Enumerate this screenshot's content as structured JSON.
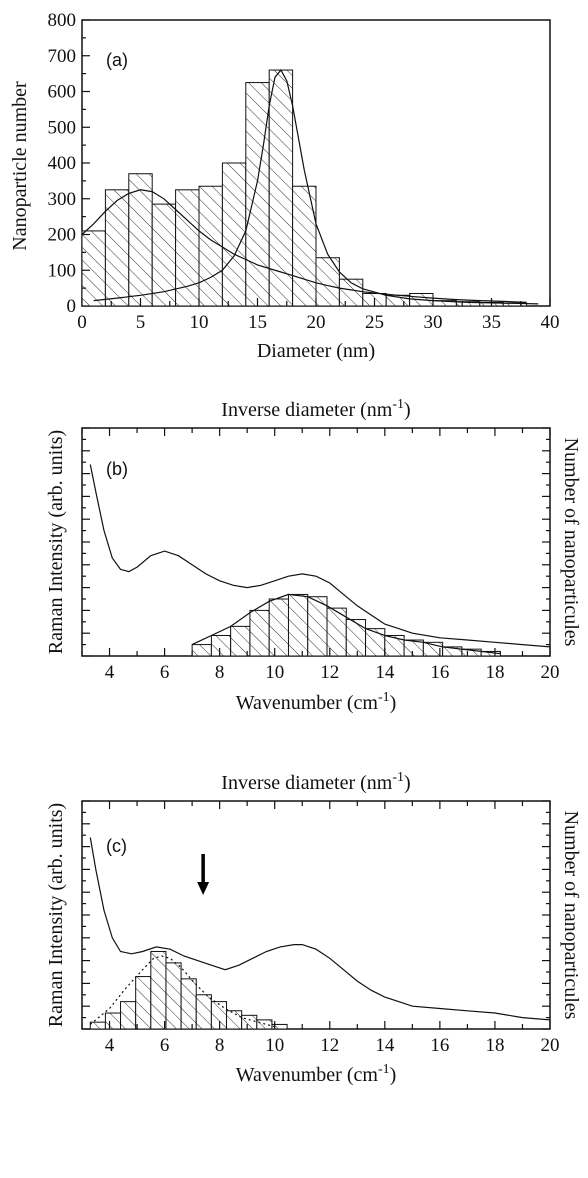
{
  "chart_data": [
    {
      "id": "a",
      "type": "bar",
      "panel_label": "(a)",
      "xlabel": "Diameter (nm)",
      "ylabel": "Nanoparticle number",
      "xlim": [
        0,
        40
      ],
      "ylim": [
        0,
        800
      ],
      "xticks": [
        0,
        5,
        10,
        15,
        20,
        25,
        30,
        35,
        40
      ],
      "yticks": [
        0,
        100,
        200,
        300,
        400,
        500,
        600,
        700,
        800
      ],
      "bin_width": 2,
      "bar_fill": "hatched",
      "bars": {
        "x_start": [
          0,
          2,
          4,
          6,
          8,
          10,
          12,
          14,
          16,
          18,
          20,
          22,
          24,
          26,
          28,
          30,
          32,
          34,
          36
        ],
        "values": [
          210,
          325,
          370,
          285,
          325,
          335,
          400,
          625,
          660,
          335,
          135,
          75,
          35,
          30,
          35,
          15,
          12,
          10,
          8
        ]
      },
      "curves": [
        {
          "x": [
            0,
            1,
            2,
            3,
            4,
            5,
            6,
            7,
            8,
            9,
            10,
            11,
            12,
            13,
            14,
            15,
            16,
            17,
            18,
            19,
            20,
            21,
            22,
            23,
            24,
            25,
            26,
            28,
            30,
            32,
            34,
            36,
            38
          ],
          "y": [
            200,
            230,
            265,
            295,
            315,
            325,
            320,
            300,
            270,
            240,
            210,
            185,
            165,
            145,
            130,
            115,
            105,
            95,
            85,
            75,
            65,
            57,
            50,
            45,
            40,
            36,
            33,
            27,
            22,
            18,
            15,
            13,
            10
          ]
        },
        {
          "x": [
            1,
            3,
            5,
            7,
            9,
            10,
            11,
            12,
            13,
            14,
            15,
            15.5,
            16,
            16.5,
            17,
            17.5,
            18,
            19,
            20,
            21,
            22,
            23,
            24,
            26,
            28,
            30,
            33,
            36,
            39
          ],
          "y": [
            15,
            22,
            30,
            40,
            55,
            65,
            80,
            100,
            140,
            210,
            350,
            450,
            560,
            640,
            660,
            630,
            560,
            380,
            230,
            145,
            95,
            65,
            48,
            30,
            20,
            15,
            10,
            8,
            6
          ]
        }
      ]
    },
    {
      "id": "b",
      "type": "bar",
      "panel_label": "(b)",
      "title": "Inverse diameter (nm",
      "title_sup": "-1",
      "title_end": ")",
      "xlabel": "Wavenumber (cm",
      "xlabel_sup": "-1",
      "xlabel_end": ")",
      "ylabel": "Raman Intensity (arb. units)",
      "y2label": "Number of nanoparticules",
      "xlim": [
        3,
        20
      ],
      "ylim": [
        0,
        100
      ],
      "xticks": [
        4,
        6,
        8,
        10,
        12,
        14,
        16,
        18,
        20
      ],
      "bin_width": 0.7,
      "bar_fill": "hatched",
      "bars": {
        "x_start": [
          7.0,
          7.7,
          8.4,
          9.1,
          9.8,
          10.5,
          11.2,
          11.9,
          12.6,
          13.3,
          14.0,
          14.7,
          15.4,
          16.1,
          16.8,
          17.5
        ],
        "values": [
          5,
          9,
          13,
          20,
          25,
          27,
          26,
          21,
          16,
          12,
          9,
          7,
          6,
          4,
          3,
          2
        ]
      },
      "curves": [
        {
          "x": [
            3.3,
            3.5,
            3.8,
            4.1,
            4.4,
            4.7,
            5.0,
            5.5,
            6.0,
            6.5,
            7.0,
            7.5,
            8.0,
            8.5,
            9.0,
            9.5,
            10.0,
            10.5,
            11.0,
            11.5,
            12.0,
            12.5,
            13.0,
            13.5,
            14.0,
            14.5,
            15.0,
            16.0,
            17.0,
            18.0,
            19.0,
            20.0
          ],
          "y": [
            84,
            72,
            55,
            43,
            38,
            37,
            39,
            44,
            46,
            44,
            40,
            36,
            33,
            31,
            30,
            31,
            33,
            35,
            36,
            35,
            32,
            27,
            22,
            18,
            14,
            12,
            10,
            8,
            7,
            6,
            5,
            4
          ]
        },
        {
          "x": [
            7.0,
            7.7,
            8.4,
            9.1,
            9.8,
            10.5,
            11.2,
            11.9,
            12.6,
            13.3,
            14.0,
            14.7,
            15.4,
            16.1,
            16.8,
            17.5,
            18.2
          ],
          "y": [
            5,
            9,
            13,
            19,
            24,
            27,
            26,
            22,
            17,
            12,
            9,
            7,
            6,
            4,
            3,
            2,
            1
          ]
        }
      ]
    },
    {
      "id": "c",
      "type": "bar",
      "panel_label": "(c)",
      "title": "Inverse diameter (nm",
      "title_sup": "-1",
      "title_end": ")",
      "xlabel": "Wavenumber (cm",
      "xlabel_sup": "-1",
      "xlabel_end": ")",
      "ylabel": "Raman Intensity (arb. units)",
      "y2label": "Number of nanoparticules",
      "xlim": [
        3,
        20
      ],
      "ylim": [
        0,
        100
      ],
      "xticks": [
        4,
        6,
        8,
        10,
        12,
        14,
        16,
        18,
        20
      ],
      "bin_width": 0.55,
      "bar_fill": "hatched",
      "bars": {
        "x_start": [
          3.3,
          3.85,
          4.4,
          4.95,
          5.5,
          6.05,
          6.6,
          7.15,
          7.7,
          8.25,
          8.8,
          9.35,
          9.9
        ],
        "values": [
          3,
          7,
          12,
          23,
          34,
          29,
          22,
          15,
          12,
          8,
          6,
          4,
          2
        ]
      },
      "curves": [
        {
          "x": [
            3.3,
            3.5,
            3.8,
            4.1,
            4.4,
            4.8,
            5.2,
            5.7,
            6.2,
            6.7,
            7.2,
            7.7,
            8.2,
            8.7,
            9.2,
            9.7,
            10.2,
            10.7,
            11.0,
            11.5,
            12.0,
            12.5,
            13.0,
            13.5,
            14.0,
            14.5,
            15.0,
            16.0,
            17.0,
            18.0,
            19.0,
            20.0
          ],
          "y": [
            84,
            70,
            52,
            40,
            34,
            33,
            34,
            36,
            35,
            32,
            30,
            28,
            26,
            28,
            31,
            34,
            36,
            37,
            37,
            35,
            31,
            26,
            21,
            17,
            14,
            12,
            10,
            9,
            8,
            7,
            5,
            4
          ]
        },
        {
          "style": "dotted",
          "x": [
            3.3,
            4.0,
            4.6,
            5.2,
            5.6,
            5.9,
            6.2,
            6.6,
            7.1,
            7.6,
            8.2,
            8.8,
            9.4,
            10.0
          ],
          "y": [
            2,
            9,
            18,
            26,
            31,
            32,
            31,
            27,
            20,
            14,
            9,
            5,
            3,
            1
          ]
        }
      ],
      "annotation": {
        "type": "arrow",
        "x": 7.4,
        "direction": "down"
      }
    }
  ]
}
